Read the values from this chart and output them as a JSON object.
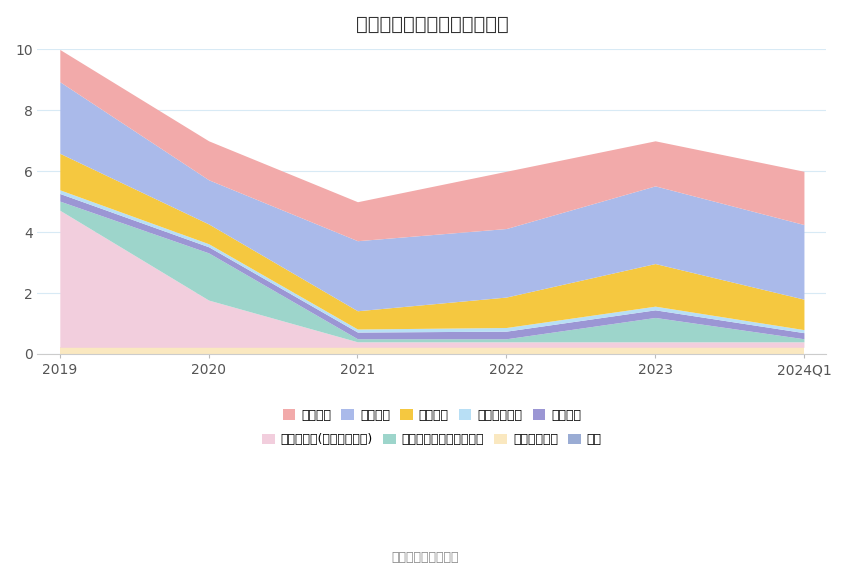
{
  "title": "历年主要负债堆积图（亿元）",
  "x_labels": [
    "2019",
    "2020",
    "2021",
    "2022",
    "2023",
    "2024Q1"
  ],
  "x_positions": [
    0,
    1,
    2,
    3,
    4,
    5
  ],
  "series": [
    {
      "name": "其他流动负债",
      "color": "#FAE8C0",
      "values": [
        0.22,
        0.22,
        0.22,
        0.22,
        0.22,
        0.22
      ]
    },
    {
      "name": "其他应付款(含利息和股利)",
      "color": "#F2CEDD",
      "values": [
        4.5,
        1.55,
        0.18,
        0.18,
        0.18,
        0.18
      ]
    },
    {
      "name": "一年内到期的非流动负债",
      "color": "#9DD5CB",
      "values": [
        0.3,
        1.55,
        0.1,
        0.1,
        0.8,
        0.1
      ]
    },
    {
      "name": "应交税费",
      "color": "#9B96D4",
      "values": [
        0.25,
        0.2,
        0.22,
        0.25,
        0.25,
        0.2
      ]
    },
    {
      "name": "应付职工薪酬",
      "color": "#B8DFF5",
      "values": [
        0.12,
        0.1,
        0.1,
        0.12,
        0.12,
        0.1
      ]
    },
    {
      "name": "合同负债",
      "color": "#F5C840",
      "values": [
        1.2,
        0.65,
        0.6,
        1.0,
        1.4,
        1.0
      ]
    },
    {
      "name": "应付账款",
      "color": "#AABAEA",
      "values": [
        2.35,
        1.45,
        2.3,
        2.25,
        2.55,
        2.45
      ]
    },
    {
      "name": "短期借款",
      "color": "#F2AAAA",
      "values": [
        1.06,
        1.28,
        1.28,
        1.88,
        1.48,
        1.75
      ]
    },
    {
      "name": "其它",
      "color": "#9AACD4",
      "values": [
        0.0,
        0.0,
        0.0,
        0.0,
        0.0,
        0.0
      ]
    }
  ],
  "ylim": [
    0,
    10
  ],
  "yticks": [
    0,
    2,
    4,
    6,
    8,
    10
  ],
  "grid_color": "#D8EAF5",
  "background_color": "#FFFFFF",
  "source_text": "数据来源：恒生聚源",
  "title_fontsize": 14,
  "tick_fontsize": 10,
  "legend_fontsize": 9,
  "legend_row1": [
    "短期借款",
    "应付账款",
    "合同负债",
    "应付职工薪酬",
    "应交税费"
  ],
  "legend_row2": [
    "其他应付款(含利息和股利)",
    "一年内到期的非流动负债",
    "其他流动负债",
    "其它"
  ]
}
